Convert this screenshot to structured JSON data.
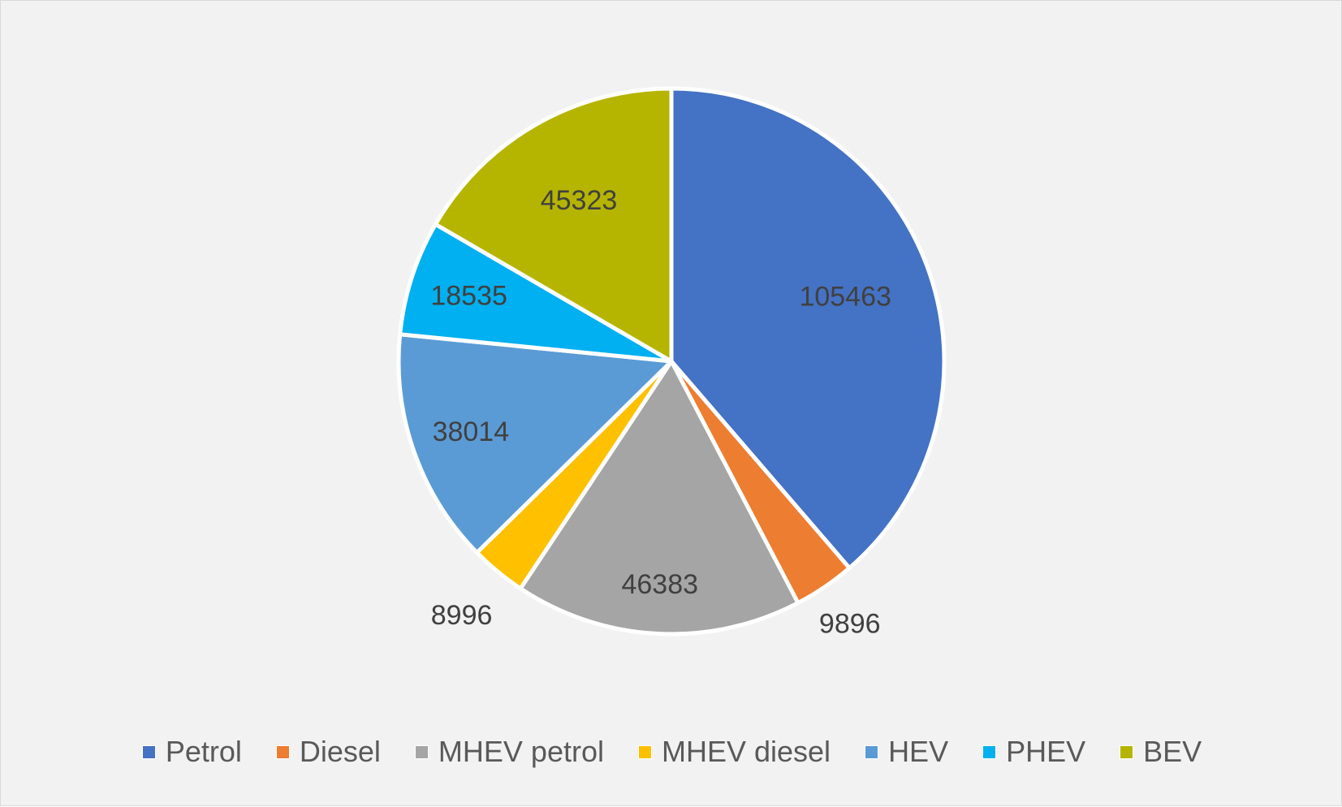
{
  "chart_data": {
    "type": "pie",
    "title": "",
    "categories": [
      "Petrol",
      "Diesel",
      "MHEV petrol",
      "MHEV diesel",
      "HEV",
      "PHEV",
      "BEV"
    ],
    "values": [
      105463,
      9896,
      46383,
      8996,
      38014,
      18535,
      45323
    ],
    "data_labels": [
      "105463",
      "9896",
      "46383",
      "8996",
      "38014",
      "18535",
      "45323"
    ],
    "colors": [
      "#4472c4",
      "#ed7d31",
      "#a5a5a5",
      "#ffc000",
      "#5b9bd5",
      "#00b0f0",
      "#b5b500"
    ],
    "start_angle_deg": 0,
    "direction": "clockwise",
    "legend_position": "bottom"
  }
}
